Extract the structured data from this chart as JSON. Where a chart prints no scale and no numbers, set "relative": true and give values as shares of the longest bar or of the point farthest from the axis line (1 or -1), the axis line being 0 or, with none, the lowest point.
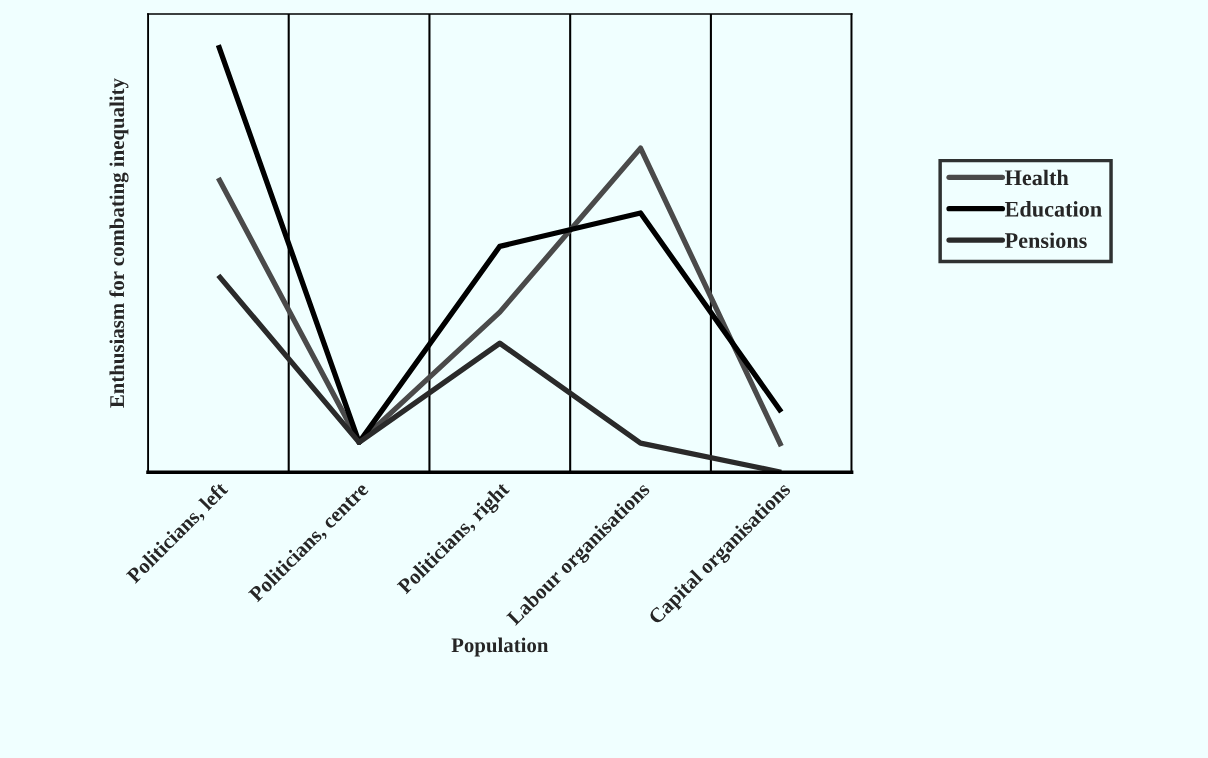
{
  "chart_data": {
    "type": "line",
    "relative": true,
    "xlabel": "Population",
    "ylabel": "Enthusiasm for combating inequality",
    "categories": [
      "Politicians, left",
      "Politicians, centre",
      "Politicians, right",
      "Labour organisations",
      "Capital organisations"
    ],
    "series": [
      {
        "name": "Health",
        "color": "#4a4a4a",
        "values": [
          0.689,
          0.07,
          0.375,
          0.759,
          0.061
        ]
      },
      {
        "name": "Education",
        "color": "#000000",
        "values": [
          1,
          0.07,
          0.529,
          0.607,
          0.141
        ]
      },
      {
        "name": "Pensions",
        "color": "#2a2a2a",
        "values": [
          0.461,
          0.07,
          0.302,
          0.068,
          0
        ]
      }
    ],
    "grid": "x",
    "legend": "right",
    "marker": "none",
    "line_style": "solid"
  }
}
